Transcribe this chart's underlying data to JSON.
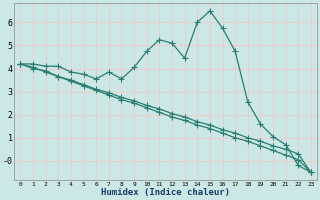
{
  "xlabel": "Humidex (Indice chaleur)",
  "background_color": "#cce8e6",
  "grid_color": "#f0c8c8",
  "line_color": "#2a7d72",
  "spine_color": "#888888",
  "x_data": [
    0,
    1,
    2,
    3,
    4,
    5,
    6,
    7,
    8,
    9,
    10,
    11,
    12,
    13,
    14,
    15,
    16,
    17,
    18,
    19,
    20,
    21,
    22,
    23
  ],
  "line1": [
    4.2,
    4.2,
    4.1,
    4.1,
    3.85,
    3.75,
    3.55,
    3.85,
    3.55,
    4.05,
    4.75,
    5.25,
    5.1,
    4.45,
    6.0,
    6.5,
    5.75,
    4.75,
    2.55,
    1.6,
    1.05,
    0.7,
    -0.2,
    -0.5
  ],
  "line2": [
    4.2,
    4.0,
    3.9,
    3.65,
    3.45,
    3.25,
    3.05,
    2.85,
    2.65,
    2.5,
    2.3,
    2.1,
    1.9,
    1.75,
    1.55,
    1.4,
    1.2,
    1.0,
    0.85,
    0.65,
    0.45,
    0.25,
    0.05,
    -0.5
  ],
  "line3": [
    4.2,
    4.05,
    3.85,
    3.65,
    3.5,
    3.3,
    3.1,
    2.95,
    2.75,
    2.6,
    2.4,
    2.25,
    2.05,
    1.9,
    1.7,
    1.55,
    1.35,
    1.2,
    1.0,
    0.85,
    0.65,
    0.5,
    0.3,
    -0.5
  ],
  "yticks": [
    0,
    1,
    2,
    3,
    4,
    5,
    6
  ],
  "ylim": [
    -0.85,
    6.85
  ],
  "xlim": [
    -0.5,
    23.5
  ],
  "markersize": 3.0,
  "linewidth": 0.9
}
